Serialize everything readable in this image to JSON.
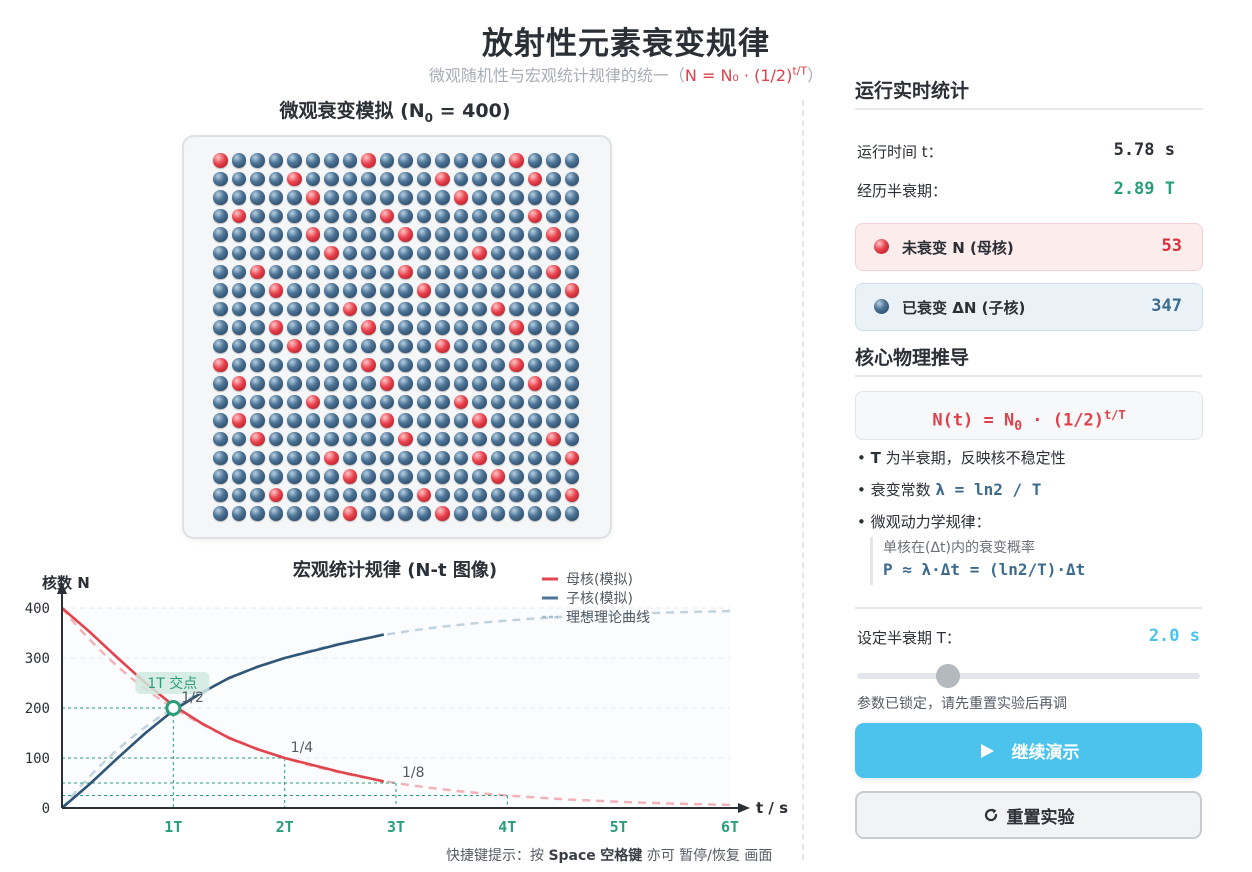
{
  "title": "放射性元素衰变规律",
  "subtitle": {
    "text": "微观随机性与宏观统计规律的统一（",
    "formula": "N = N₀ · (1/2)",
    "formula_sup": "t/T",
    "close": "）"
  },
  "simulation": {
    "title_prefix": "微观衰变模拟 (N",
    "title_sub": "0",
    "title_suffix": " = 400)",
    "total": 400,
    "undecayed": 53,
    "colors": {
      "undecayed": "#e8414c",
      "decayed": "#2f5577"
    }
  },
  "chart": {
    "title": "宏观统计规律 (N-t 图像)",
    "ylabel": "核数 N",
    "xlabel": "t / s",
    "yticks": [
      "0",
      "100",
      "200",
      "300",
      "400"
    ],
    "xticks": [
      "1T",
      "2T",
      "3T",
      "4T",
      "5T",
      "6T"
    ],
    "legend": [
      "母核(模拟)",
      "子核(模拟)",
      "理想理论曲线"
    ],
    "annotations": {
      "cross": "1T 交点",
      "half": "1/2",
      "quarter": "1/4",
      "eighth": "1/8"
    }
  },
  "chart_data": {
    "type": "line",
    "title": "宏观统计规律 (N-t 图像)",
    "xlabel": "t / s",
    "ylabel": "核数 N",
    "x_unit": "T",
    "xlim": [
      0,
      6
    ],
    "ylim": [
      0,
      400
    ],
    "series": [
      {
        "name": "母核(模拟)",
        "color": "#e2444e",
        "x": [
          0,
          0.25,
          0.5,
          0.75,
          1.0,
          1.25,
          1.5,
          1.75,
          2.0,
          2.25,
          2.5,
          2.75,
          2.89
        ],
        "y": [
          400,
          352,
          300,
          250,
          205,
          170,
          140,
          118,
          100,
          86,
          72,
          60,
          53
        ]
      },
      {
        "name": "子核(模拟)",
        "color": "#2f5577",
        "x": [
          0,
          0.25,
          0.5,
          0.75,
          1.0,
          1.25,
          1.5,
          1.75,
          2.0,
          2.25,
          2.5,
          2.75,
          2.89
        ],
        "y": [
          0,
          48,
          100,
          150,
          195,
          230,
          260,
          282,
          300,
          314,
          328,
          340,
          347
        ]
      },
      {
        "name": "理想理论曲线",
        "style": "dashed",
        "x": [
          0,
          0.5,
          1,
          1.5,
          2,
          2.5,
          3,
          4,
          5,
          6
        ],
        "y": [
          400,
          283,
          200,
          141,
          100,
          71,
          50,
          25,
          12.5,
          6.25
        ],
        "complement_y": [
          0,
          117,
          200,
          259,
          300,
          329,
          350,
          375,
          387.5,
          393.75
        ]
      }
    ],
    "reference_lines": [
      200,
      100,
      50,
      25
    ],
    "grid": true,
    "legend_position": "top-right"
  },
  "shortcut": {
    "prefix": "快捷键提示：按 ",
    "key1": "Space",
    "key2": "空格键",
    "suffix": " 亦可 暂停/恢复 画面"
  },
  "stats": {
    "title": "运行实时统计",
    "time_label": "运行时间 t：",
    "time_value": "5.78 s",
    "halflives_label": "经历半衰期：",
    "halflives_value": "2.89 T",
    "undecayed_label": "未衰变 N (母核)",
    "undecayed_value": "53",
    "decayed_label": "已衰变 ΔN (子核)",
    "decayed_value": "347"
  },
  "physics": {
    "title": "核心物理推导",
    "formula_a": "N(t) = N",
    "formula_sub": "0",
    "formula_b": " · (1/2)",
    "formula_sup": "t/T",
    "b1_bold": "T",
    "b1_rest": " 为半衰期，反映核不稳定性",
    "b2_text": "衰变常数 ",
    "b2_code": "λ = ln2 / T",
    "b3_text": "微观动力学规律：",
    "quote1": "单核在(Δt)内的衰变概率",
    "quote2": "P ≈ λ·Δt = (ln2/T)·Δt"
  },
  "controls": {
    "halflife_label": "设定半衰期 T：",
    "halflife_value": "2.0 s",
    "slider_value": 2.0,
    "locked_note": "参数已锁定，请先重置实验后再调",
    "primary_label": "继续演示",
    "secondary_label": "重置实验"
  }
}
